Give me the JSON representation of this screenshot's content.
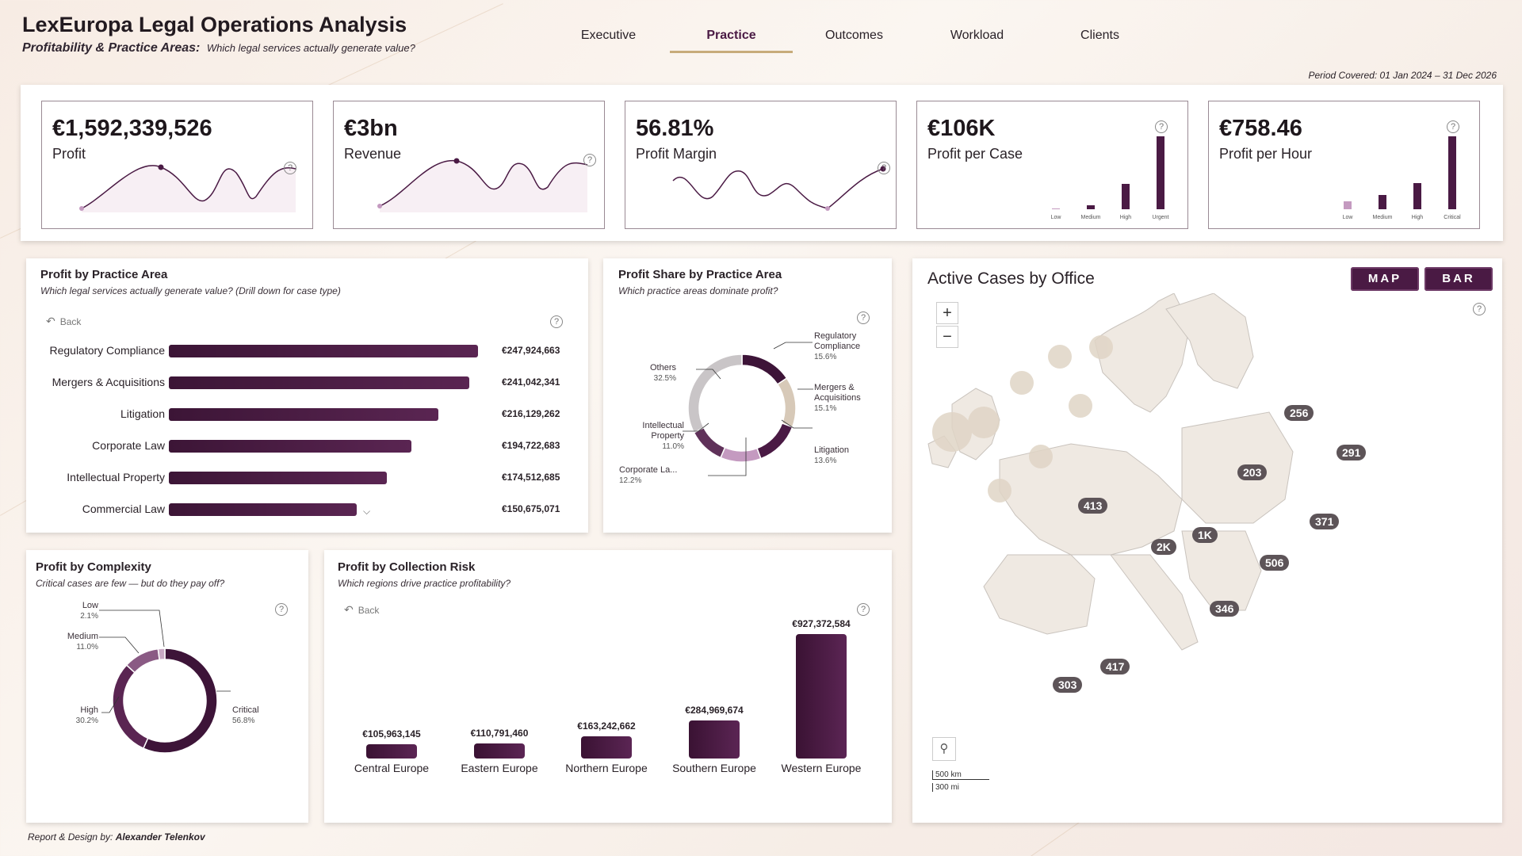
{
  "header": {
    "title": "LexEuropa Legal Operations Analysis",
    "subtitle": "Profitability & Practice Areas:",
    "subtitle_question": "Which legal services actually generate value?",
    "period": "Period Covered: 01 Jan 2024 – 31 Dec 2026"
  },
  "nav": {
    "tabs": [
      "Executive",
      "Practice",
      "Outcomes",
      "Workload",
      "Clients"
    ],
    "active": "Practice"
  },
  "kpis": [
    {
      "value": "€1,592,339,526",
      "label": "Profit",
      "visual": "sparkline"
    },
    {
      "value": "€3bn",
      "label": "Revenue",
      "visual": "sparkline"
    },
    {
      "value": "56.81%",
      "label": "Profit Margin",
      "visual": "sparkline"
    },
    {
      "value": "€106K",
      "label": "Profit per Case",
      "visual": "bars",
      "bar_labels": [
        "Low",
        "Medium",
        "High",
        "Urgent"
      ]
    },
    {
      "value": "€758.46",
      "label": "Profit per Hour",
      "visual": "bars",
      "bar_labels": [
        "Low",
        "Medium",
        "High",
        "Critical"
      ]
    }
  ],
  "practice": {
    "title": "Profit by Practice Area",
    "subtitle": "Which legal services actually generate value? (Drill down for case type)",
    "back_label": "Back",
    "help": "?",
    "chart_data": {
      "type": "bar",
      "categories": [
        "Regulatory Compliance",
        "Mergers & Acquisitions",
        "Litigation",
        "Corporate Law",
        "Intellectual Property",
        "Commercial Law"
      ],
      "values": [
        247924663,
        241042341,
        216129262,
        194722683,
        174512685,
        150675071
      ],
      "labels": [
        "€247,924,663",
        "€241,042,341",
        "€216,129,262",
        "€194,722,683",
        "€174,512,685",
        "€150,675,071"
      ]
    }
  },
  "share": {
    "title": "Profit Share by Practice Area",
    "subtitle": "Which practice areas dominate profit?",
    "help": "?",
    "chart_data": {
      "type": "pie",
      "slices": [
        {
          "name": "Regulatory Compliance",
          "value": 15.6,
          "label": "15.6%",
          "color": "#3d1438"
        },
        {
          "name": "Mergers & Acquisitions",
          "value": 15.1,
          "label": "15.1%",
          "color": "#d7c9b8"
        },
        {
          "name": "Litigation",
          "value": 13.6,
          "label": "13.6%",
          "color": "#4a1a44"
        },
        {
          "name": "Corporate La...",
          "value": 12.2,
          "label": "12.2%",
          "color": "#c49ac0"
        },
        {
          "name": "Intellectual Property",
          "value": 11.0,
          "label": "11.0%",
          "color": "#5f3159"
        },
        {
          "name": "Others",
          "value": 32.5,
          "label": "32.5%",
          "color": "#c9c5c7"
        }
      ]
    }
  },
  "complexity": {
    "title": "Profit by Complexity",
    "subtitle": "Critical cases are few — but do they pay off?",
    "help": "?",
    "chart_data": {
      "type": "pie",
      "slices": [
        {
          "name": "Critical",
          "value": 56.8,
          "label": "56.8%",
          "color": "#3d1438"
        },
        {
          "name": "High",
          "value": 30.2,
          "label": "30.2%",
          "color": "#5a2552"
        },
        {
          "name": "Medium",
          "value": 11.0,
          "label": "11.0%",
          "color": "#8a5a84"
        },
        {
          "name": "Low",
          "value": 2.1,
          "label": "2.1%",
          "color": "#c9a9c4"
        }
      ]
    }
  },
  "risk": {
    "title": "Profit by Collection Risk",
    "subtitle": "Which regions drive practice profitability?",
    "back_label": "Back",
    "help": "?",
    "chart_data": {
      "type": "bar",
      "categories": [
        "Central Europe",
        "Eastern Europe",
        "Northern Europe",
        "Southern Europe",
        "Western Europe"
      ],
      "values": [
        105963145,
        110791460,
        163242662,
        284969674,
        927372584
      ],
      "labels": [
        "€105,963,145",
        "€110,791,460",
        "€163,242,662",
        "€284,969,674",
        "€927,372,584"
      ]
    }
  },
  "map": {
    "title": "Active Cases by Office",
    "toggle_map": "MAP",
    "toggle_bar": "BAR",
    "zoom_in": "+",
    "zoom_out": "−",
    "scale_km": "500 km",
    "scale_mi": "300 mi",
    "help": "?",
    "bubbles": [
      "256",
      "291",
      "203",
      "413",
      "2K",
      "1K",
      "371",
      "506",
      "346",
      "417",
      "303"
    ]
  },
  "footer": {
    "prefix": "Report & Design by:",
    "author": "Alexander Telenkov"
  }
}
